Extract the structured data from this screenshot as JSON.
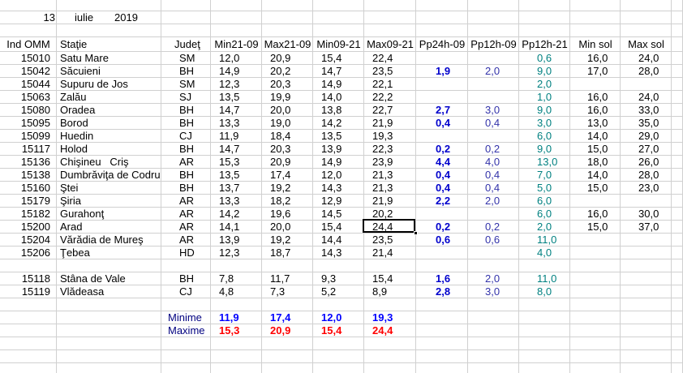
{
  "date": {
    "day": "13",
    "month": "iulie",
    "year": "2019"
  },
  "table": {
    "headers": [
      "Ind OMM",
      "Staţie",
      "Judeţ",
      "Min21-09",
      "Max21-09",
      "Min09-21",
      "Max09-21",
      "Pp24h-09",
      "Pp12h-09",
      "Pp12h-21",
      "Min sol",
      "Max sol"
    ],
    "rows": [
      [
        "15010",
        "Satu Mare",
        "SM",
        "12,0",
        "20,9",
        "15,4",
        "22,4",
        null,
        null,
        "0,6",
        "16,0",
        "24,0"
      ],
      [
        "15042",
        "Săcuieni",
        "BH",
        "14,9",
        "20,2",
        "14,7",
        "23,5",
        "1,9",
        "2,0",
        "9,0",
        "17,0",
        "28,0"
      ],
      [
        "15044",
        "Supuru de Jos",
        "SM",
        "12,3",
        "20,3",
        "14,9",
        "22,1",
        null,
        null,
        "2,0",
        null,
        null
      ],
      [
        "15063",
        "Zalău",
        "SJ",
        "13,5",
        "19,9",
        "14,0",
        "22,2",
        null,
        null,
        "1,0",
        "16,0",
        "24,0"
      ],
      [
        "15080",
        "Oradea",
        "BH",
        "14,7",
        "20,0",
        "13,8",
        "22,7",
        "2,7",
        "3,0",
        "9,0",
        "16,0",
        "33,0"
      ],
      [
        "15095",
        "Borod",
        "BH",
        "13,3",
        "19,0",
        "14,2",
        "21,9",
        "0,4",
        "0,4",
        "3,0",
        "13,0",
        "35,0"
      ],
      [
        "15099",
        "Huedin",
        "CJ",
        "11,9",
        "18,4",
        "13,5",
        "19,3",
        null,
        null,
        "6,0",
        "14,0",
        "29,0"
      ],
      [
        "15117",
        "Holod",
        "BH",
        "14,7",
        "20,3",
        "13,9",
        "22,3",
        "0,2",
        "0,2",
        "9,0",
        "15,0",
        "27,0"
      ],
      [
        "15136",
        "Chişineu   Criş",
        "AR",
        "15,3",
        "20,9",
        "14,9",
        "23,9",
        "4,4",
        "4,0",
        "13,0",
        "18,0",
        "26,0"
      ],
      [
        "15138",
        "Dumbrăviţa de Codru",
        "BH",
        "13,5",
        "17,4",
        "12,0",
        "21,3",
        "0,4",
        "0,4",
        "7,0",
        "14,0",
        "28,0"
      ],
      [
        "15160",
        "Ştei",
        "BH",
        "13,7",
        "19,2",
        "14,3",
        "21,3",
        "0,4",
        "0,4",
        "5,0",
        "15,0",
        "23,0"
      ],
      [
        "15179",
        "Şiria",
        "AR",
        "13,3",
        "18,2",
        "12,9",
        "21,9",
        "2,2",
        "2,0",
        "6,0",
        null,
        null
      ],
      [
        "15182",
        "Gurahonţ",
        "AR",
        "14,2",
        "19,6",
        "14,5",
        "20,2",
        null,
        null,
        "6,0",
        "16,0",
        "30,0"
      ],
      [
        "15200",
        "Arad",
        "AR",
        "14,1",
        "20,0",
        "15,4",
        "24,4",
        "0,2",
        "0,2",
        "2,0",
        "15,0",
        "37,0"
      ],
      [
        "15204",
        "Vărădia de Mureş",
        "AR",
        "13,9",
        "19,2",
        "14,4",
        "23,5",
        "0,6",
        "0,6",
        "11,0",
        null,
        null
      ],
      [
        "15206",
        "Ţebea",
        "HD",
        "12,3",
        "18,7",
        "14,3",
        "21,4",
        null,
        null,
        "4,0",
        null,
        null
      ]
    ],
    "extra_rows": [
      [
        "15118",
        "Stâna de Vale",
        "BH",
        "7,8",
        "11,7",
        "9,3",
        "15,4",
        "1,6",
        "2,0",
        "11,0",
        null,
        null
      ],
      [
        "15119",
        "Vlădeasa",
        "CJ",
        "4,8",
        "7,3",
        "5,2",
        "8,9",
        "2,8",
        "3,0",
        "8,0",
        null,
        null
      ]
    ],
    "summary": [
      {
        "label": "Minime",
        "values": [
          "11,9",
          "17,4",
          "12,0",
          "19,3"
        ]
      },
      {
        "label": "Maxime",
        "values": [
          "15,3",
          "20,9",
          "15,4",
          "24,4"
        ]
      }
    ]
  }
}
